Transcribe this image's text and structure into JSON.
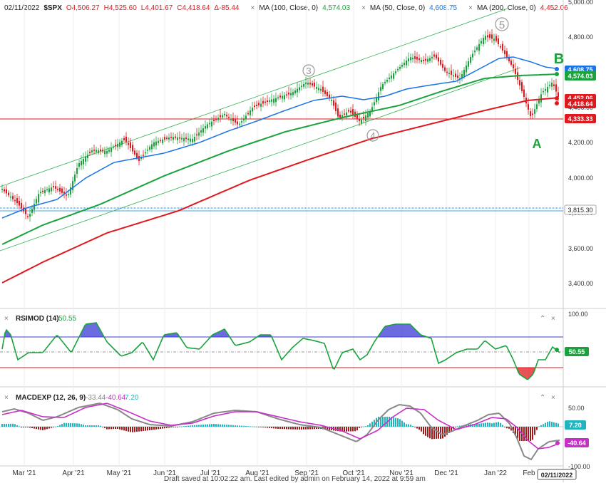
{
  "header": {
    "date": "02/11/2022",
    "symbol": "$SPX",
    "o": "O4,506.27",
    "h": "H4,525.60",
    "l": "L4,401.67",
    "c": "C4,418.64",
    "d": "Δ-85.44",
    "ma100_label": "MA (100, Close, 0)",
    "ma100_value": "4,574.03",
    "ma50_label": "MA (50, Close, 0)",
    "ma50_value": "4,608.75",
    "ma200_label": "MA (200, Close, 0)",
    "ma200_value": "4,452.06",
    "close_x": "×"
  },
  "price_axis": {
    "ticks": [
      "5,000.00",
      "4,800.00",
      "4,600.00",
      "4,400.00",
      "4,200.00",
      "4,000.00",
      "3,800.00",
      "3,600.00",
      "3,400.00"
    ],
    "badges": {
      "ma50": "4,608.75",
      "ma100": "4,574.03",
      "ma200": "4,452.06",
      "close": "4,418.64",
      "line1": "4,333.33",
      "line2": "3,815.30"
    }
  },
  "wave_labels": {
    "w3": "3",
    "w4": "4",
    "w5": "5",
    "a": "A",
    "b": "B"
  },
  "rsi": {
    "label": "RSIMOD (14)",
    "value": "50.55",
    "axis_top": "100.00",
    "badge": "50.55"
  },
  "macd": {
    "label": "MACDEXP (12, 26, 9)",
    "v1": "-33.44",
    "v2": "-40.64",
    "v3": "7.20",
    "axis_top": "50.00",
    "axis_bottom": "-100.00",
    "badge_hist": "7.20",
    "badge_signal": "-40.64"
  },
  "time_axis": {
    "labels": [
      "Mar '21",
      "Apr '21",
      "May '21",
      "Jun '21",
      "Jul '21",
      "Aug '21",
      "Sep '21",
      "Oct '21",
      "Nov '21",
      "Dec '21",
      "Jan '22",
      "Feb"
    ],
    "current": "02/11/2022"
  },
  "footer": "Draft saved at 10:02:22 am. Last edited by admin on February 14, 2022 at 9:59 am",
  "colors": {
    "ma50": "#1a73e8",
    "ma100": "#1aa33c",
    "ma200": "#e0191f",
    "up": "#1aa33c",
    "down": "#e0191f",
    "rsi": "#1aa33c",
    "rsi_fill_high": "#3b3bd6",
    "rsi_fill_low": "#e0191f",
    "macd": "#888888",
    "signal": "#c82ec8",
    "hist_pos": "#20b4c0",
    "hist_neg": "#a01c1c"
  }
}
